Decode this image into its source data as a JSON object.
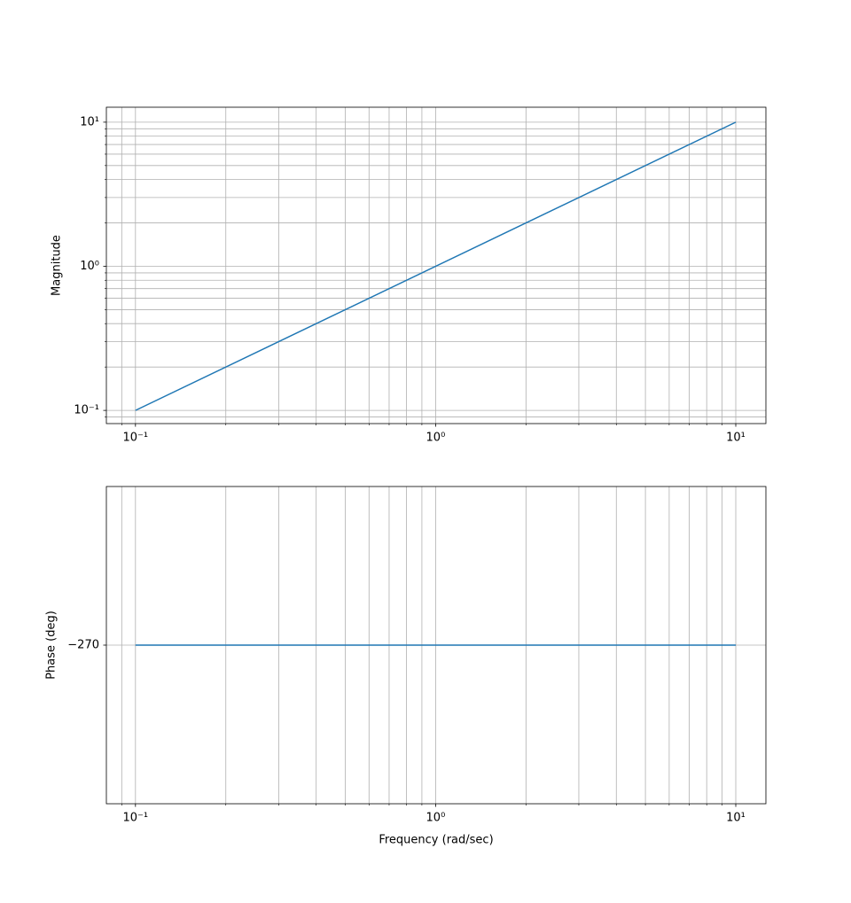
{
  "chart_data": [
    {
      "type": "line",
      "xscale": "log",
      "yscale": "log",
      "grid": true,
      "ylabel": "Magnitude",
      "xlim": [
        0.08,
        12.6
      ],
      "ylim": [
        0.081,
        12.7
      ],
      "xticks": [
        {
          "value": 0.1,
          "label": "10⁻¹"
        },
        {
          "value": 1,
          "label": "10⁰"
        },
        {
          "value": 10,
          "label": "10¹"
        }
      ],
      "xticks_minor": [
        0.09,
        0.2,
        0.3,
        0.4,
        0.5,
        0.6,
        0.7,
        0.8,
        0.9,
        2,
        3,
        4,
        5,
        6,
        7,
        8,
        9
      ],
      "yticks": [
        {
          "value": 0.1,
          "label": "10⁻¹"
        },
        {
          "value": 1,
          "label": "10⁰"
        },
        {
          "value": 10,
          "label": "10¹"
        }
      ],
      "yticks_minor": [
        0.09,
        0.2,
        0.3,
        0.4,
        0.5,
        0.6,
        0.7,
        0.8,
        0.9,
        2,
        3,
        4,
        5,
        6,
        7,
        8,
        9
      ],
      "series": [
        {
          "color": "#1f77b4",
          "x": [
            0.1,
            10
          ],
          "values": [
            0.1,
            10
          ]
        }
      ]
    },
    {
      "type": "line",
      "xscale": "log",
      "yscale": "linear",
      "grid": true,
      "ylabel": "Phase (deg)",
      "xlabel": "Frequency (rad/sec)",
      "xlim": [
        0.08,
        12.6
      ],
      "ylim": [
        -283.5,
        -256.5
      ],
      "xticks": [
        {
          "value": 0.1,
          "label": "10⁻¹"
        },
        {
          "value": 1,
          "label": "10⁰"
        },
        {
          "value": 10,
          "label": "10¹"
        }
      ],
      "xticks_minor": [
        0.09,
        0.2,
        0.3,
        0.4,
        0.5,
        0.6,
        0.7,
        0.8,
        0.9,
        2,
        3,
        4,
        5,
        6,
        7,
        8,
        9
      ],
      "yticks": [
        {
          "value": -270,
          "label": "−270"
        }
      ],
      "series": [
        {
          "color": "#1f77b4",
          "x": [
            0.1,
            10
          ],
          "values": [
            -270,
            -270
          ]
        }
      ]
    }
  ]
}
